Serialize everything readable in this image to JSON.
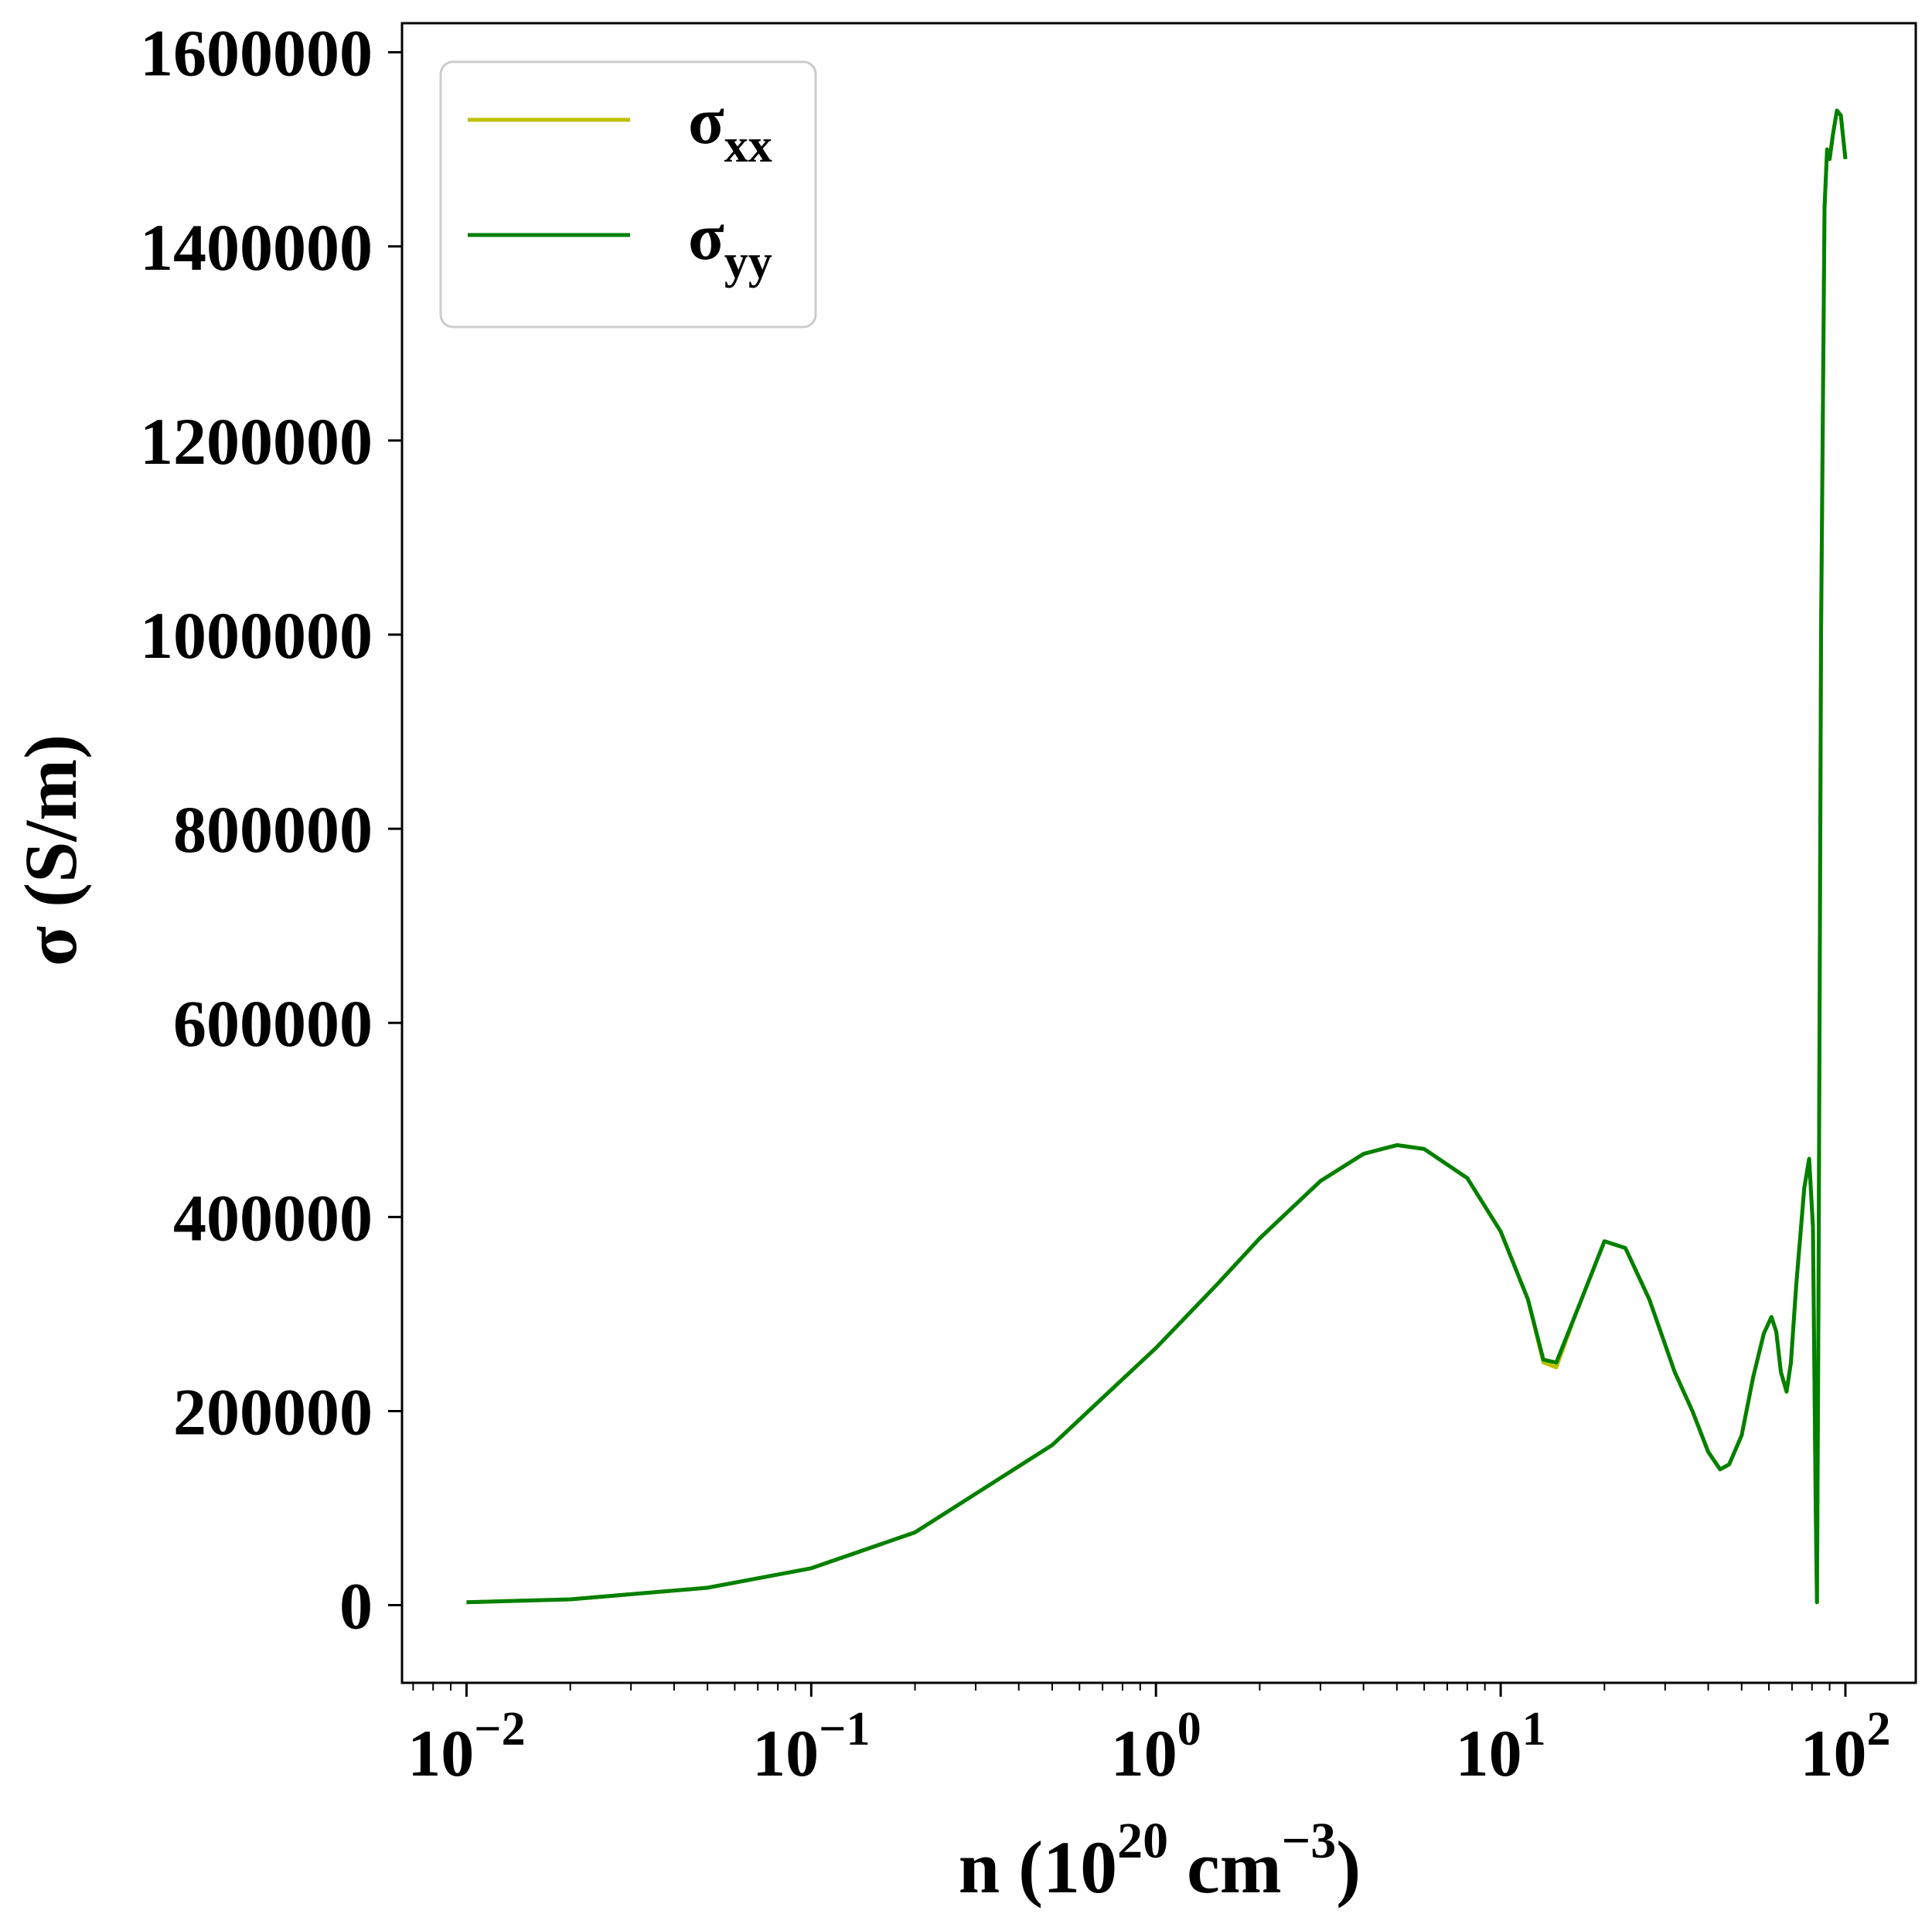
{
  "chart_data": {
    "type": "line",
    "x_scale": "log",
    "xlim": [
      0.0065,
      160
    ],
    "ylim": [
      -80000,
      1630000
    ],
    "grid": false,
    "legend_position": "top-left",
    "x_axis_title": {
      "base": "n (10",
      "exp1": "20",
      "mid": " cm",
      "exp2": "−3",
      "end": ")"
    },
    "y_axis_title": "σ (S/m)",
    "x_ticks": [
      {
        "value": 0.01,
        "base": "10",
        "exp": "−2"
      },
      {
        "value": 0.1,
        "base": "10",
        "exp": "−1"
      },
      {
        "value": 1,
        "base": "10",
        "exp": "0"
      },
      {
        "value": 10,
        "base": "10",
        "exp": "1"
      },
      {
        "value": 100,
        "base": "10",
        "exp": "2"
      }
    ],
    "y_ticks": [
      {
        "value": 0,
        "label": "0"
      },
      {
        "value": 200000,
        "label": "200000"
      },
      {
        "value": 400000,
        "label": "400000"
      },
      {
        "value": 600000,
        "label": "600000"
      },
      {
        "value": 800000,
        "label": "800000"
      },
      {
        "value": 1000000,
        "label": "1000000"
      },
      {
        "value": 1200000,
        "label": "1200000"
      },
      {
        "value": 1400000,
        "label": "1400000"
      },
      {
        "value": 1600000,
        "label": "1600000"
      }
    ],
    "series": [
      {
        "name": "σ",
        "sub": "xx",
        "color": "#bfbf00",
        "x": [
          0.01,
          0.02,
          0.05,
          0.1,
          0.2,
          0.5,
          1,
          1.5,
          2,
          3,
          4,
          5,
          6,
          8,
          10,
          12,
          13.3,
          14.5,
          16.5,
          20,
          23,
          27,
          32,
          36,
          40,
          43.3,
          46,
          50,
          54,
          58,
          61,
          63,
          65,
          67.5,
          69.5,
          72,
          76,
          78.5,
          80.5,
          82,
          82.7,
          83.5,
          85,
          87,
          88.5,
          90,
          92,
          94.5,
          97,
          100
        ],
        "y": [
          3000,
          6000,
          18000,
          38000,
          75000,
          165000,
          265000,
          330000,
          378000,
          437000,
          465000,
          474000,
          470000,
          440000,
          385000,
          315000,
          250000,
          245000,
          300000,
          375000,
          368000,
          315000,
          240000,
          200000,
          158000,
          140000,
          145000,
          175000,
          235000,
          280000,
          297000,
          282000,
          240000,
          220000,
          250000,
          330000,
          430000,
          460000,
          390000,
          100000,
          3000,
          300000,
          1000000,
          1440000,
          1500000,
          1490000,
          1515000,
          1540000,
          1535000,
          1490000
        ]
      },
      {
        "name": "σ",
        "sub": "yy",
        "color": "#008000",
        "x": [
          0.01,
          0.02,
          0.05,
          0.1,
          0.2,
          0.5,
          1,
          1.5,
          2,
          3,
          4,
          5,
          6,
          8,
          10,
          12,
          13.3,
          14.5,
          16.5,
          20,
          23,
          27,
          32,
          36,
          40,
          43.3,
          46,
          50,
          54,
          58,
          61,
          63,
          65,
          67.5,
          69.5,
          72,
          76,
          78.5,
          80.5,
          82,
          82.7,
          83.5,
          85,
          87,
          88.5,
          90,
          92,
          94.5,
          97,
          100
        ],
        "y": [
          3000,
          6000,
          18000,
          38000,
          75000,
          165000,
          265000,
          330000,
          378000,
          437000,
          465000,
          474000,
          470000,
          440000,
          385000,
          315000,
          253000,
          250000,
          300000,
          375000,
          368000,
          315000,
          240000,
          200000,
          158000,
          140000,
          145000,
          175000,
          235000,
          280000,
          297000,
          282000,
          240000,
          220000,
          250000,
          330000,
          430000,
          460000,
          390000,
          100000,
          3000,
          300000,
          1000000,
          1440000,
          1500000,
          1490000,
          1515000,
          1540000,
          1535000,
          1490000
        ]
      }
    ]
  }
}
